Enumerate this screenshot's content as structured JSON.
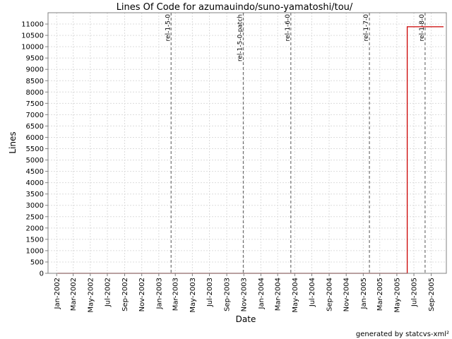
{
  "chart_data": {
    "type": "line",
    "title": "Lines Of Code for azumauindo/suno-yamatoshi/tou/",
    "xlabel": "Date",
    "ylabel": "Lines",
    "ylim": [
      0,
      11500
    ],
    "xlim": [
      "2001-12-01",
      "2005-10-25"
    ],
    "grid": true,
    "y_ticks": [
      0,
      500,
      1000,
      1500,
      2000,
      2500,
      3000,
      3500,
      4000,
      4500,
      5000,
      5500,
      6000,
      6500,
      7000,
      7500,
      8000,
      8500,
      9000,
      9500,
      10000,
      10500,
      11000
    ],
    "x_ticks": [
      {
        "date": "2002-01-01",
        "label": "Jan-2002"
      },
      {
        "date": "2002-03-01",
        "label": "Mar-2002"
      },
      {
        "date": "2002-05-01",
        "label": "May-2002"
      },
      {
        "date": "2002-07-01",
        "label": "Jul-2002"
      },
      {
        "date": "2002-09-01",
        "label": "Sep-2002"
      },
      {
        "date": "2002-11-01",
        "label": "Nov-2002"
      },
      {
        "date": "2003-01-01",
        "label": "Jan-2003"
      },
      {
        "date": "2003-03-01",
        "label": "Mar-2003"
      },
      {
        "date": "2003-05-01",
        "label": "May-2003"
      },
      {
        "date": "2003-07-01",
        "label": "Jul-2003"
      },
      {
        "date": "2003-09-01",
        "label": "Sep-2003"
      },
      {
        "date": "2003-11-01",
        "label": "Nov-2003"
      },
      {
        "date": "2004-01-01",
        "label": "Jan-2004"
      },
      {
        "date": "2004-03-01",
        "label": "Mar-2004"
      },
      {
        "date": "2004-05-01",
        "label": "May-2004"
      },
      {
        "date": "2004-07-01",
        "label": "Jul-2004"
      },
      {
        "date": "2004-09-01",
        "label": "Sep-2004"
      },
      {
        "date": "2004-11-01",
        "label": "Nov-2004"
      },
      {
        "date": "2005-01-01",
        "label": "Jan-2005"
      },
      {
        "date": "2005-03-01",
        "label": "Mar-2005"
      },
      {
        "date": "2005-05-01",
        "label": "May-2005"
      },
      {
        "date": "2005-07-01",
        "label": "Jul-2005"
      },
      {
        "date": "2005-09-01",
        "label": "Sep-2005"
      }
    ],
    "series": [
      {
        "color": "#cc0000",
        "points": [
          {
            "x": "2002-01-04",
            "y": 0
          },
          {
            "x": "2005-06-07",
            "y": 0
          },
          {
            "x": "2005-06-07",
            "y": 10880
          },
          {
            "x": "2005-10-15",
            "y": 10880
          }
        ]
      }
    ],
    "annotations": [
      {
        "date": "2003-02-14",
        "label": "rel-1-5-0"
      },
      {
        "date": "2003-10-30",
        "label": "rel-1-5-0-patch"
      },
      {
        "date": "2004-04-17",
        "label": "rel-1-6-0"
      },
      {
        "date": "2005-01-23",
        "label": "rel-1-7-0"
      },
      {
        "date": "2005-08-10",
        "label": "rel-1-8-0"
      }
    ]
  },
  "footer": "generated by statcvs-xml²"
}
